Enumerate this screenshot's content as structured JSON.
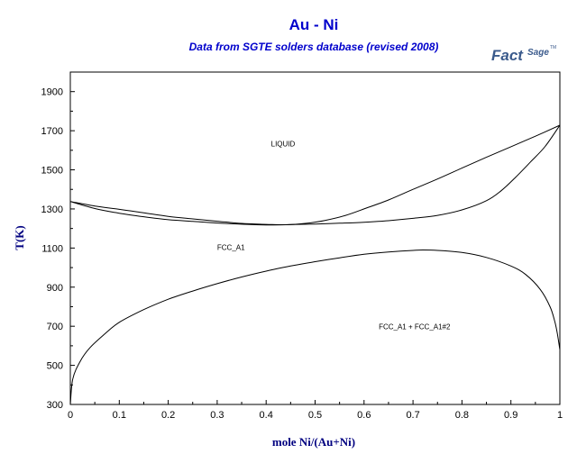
{
  "chart_data": {
    "type": "line",
    "title": "Au - Ni",
    "subtitle": "Data from SGTE solders database (revised 2008)",
    "xlabel": "mole Ni/(Au+Ni)",
    "ylabel": "T(K)",
    "xlim": [
      0,
      1
    ],
    "ylim": [
      300,
      2000
    ],
    "xticks": [
      0,
      0.1,
      0.2,
      0.3,
      0.4,
      0.5,
      0.6,
      0.7,
      0.8,
      0.9,
      1
    ],
    "yticks": [
      300,
      500,
      700,
      900,
      1100,
      1300,
      1500,
      1700,
      1900
    ],
    "grid": false,
    "logo": {
      "word1": "Fact",
      "word2": "Sage",
      "mark": "TM"
    },
    "labels": [
      {
        "text": "LIQUID",
        "x": 0.41,
        "y": 1620
      },
      {
        "text": "FCC_A1",
        "x": 0.3,
        "y": 1090
      },
      {
        "text": "FCC_A1 + FCC_A1#2",
        "x": 0.63,
        "y": 685
      }
    ],
    "series": [
      {
        "points": [
          [
            0,
            1338
          ],
          [
            0.05,
            1315
          ],
          [
            0.1,
            1298
          ],
          [
            0.15,
            1280
          ],
          [
            0.2,
            1262
          ],
          [
            0.25,
            1249
          ],
          [
            0.3,
            1237
          ],
          [
            0.35,
            1226
          ],
          [
            0.4,
            1221
          ],
          [
            0.44,
            1219
          ],
          [
            0.48,
            1226
          ],
          [
            0.52,
            1241
          ],
          [
            0.56,
            1265
          ],
          [
            0.6,
            1300
          ],
          [
            0.65,
            1346
          ],
          [
            0.7,
            1400
          ],
          [
            0.75,
            1453
          ],
          [
            0.8,
            1509
          ],
          [
            0.85,
            1564
          ],
          [
            0.9,
            1618
          ],
          [
            0.95,
            1672
          ],
          [
            1,
            1728
          ]
        ]
      },
      {
        "points": [
          [
            0,
            1338
          ],
          [
            0.05,
            1302
          ],
          [
            0.1,
            1278
          ],
          [
            0.15,
            1260
          ],
          [
            0.2,
            1245
          ],
          [
            0.25,
            1236
          ],
          [
            0.3,
            1228
          ],
          [
            0.35,
            1222
          ],
          [
            0.4,
            1218
          ],
          [
            0.44,
            1219
          ],
          [
            0.5,
            1223
          ],
          [
            0.55,
            1227
          ],
          [
            0.6,
            1232
          ],
          [
            0.65,
            1240
          ],
          [
            0.7,
            1252
          ],
          [
            0.75,
            1267
          ],
          [
            0.8,
            1295
          ],
          [
            0.85,
            1342
          ],
          [
            0.88,
            1393
          ],
          [
            0.91,
            1463
          ],
          [
            0.94,
            1540
          ],
          [
            0.97,
            1620
          ],
          [
            1,
            1728
          ]
        ]
      },
      {
        "points": [
          [
            0,
            300
          ],
          [
            0.005,
            430
          ],
          [
            0.02,
            520
          ],
          [
            0.04,
            590
          ],
          [
            0.07,
            660
          ],
          [
            0.1,
            720
          ],
          [
            0.15,
            785
          ],
          [
            0.2,
            838
          ],
          [
            0.25,
            880
          ],
          [
            0.3,
            918
          ],
          [
            0.35,
            952
          ],
          [
            0.4,
            982
          ],
          [
            0.45,
            1008
          ],
          [
            0.5,
            1030
          ],
          [
            0.55,
            1050
          ],
          [
            0.6,
            1068
          ],
          [
            0.65,
            1080
          ],
          [
            0.7,
            1088
          ],
          [
            0.72,
            1090
          ],
          [
            0.75,
            1088
          ],
          [
            0.8,
            1077
          ],
          [
            0.85,
            1052
          ],
          [
            0.9,
            1008
          ],
          [
            0.93,
            965
          ],
          [
            0.96,
            888
          ],
          [
            0.98,
            800
          ],
          [
            0.99,
            720
          ],
          [
            0.995,
            660
          ],
          [
            1,
            580
          ]
        ]
      }
    ]
  }
}
